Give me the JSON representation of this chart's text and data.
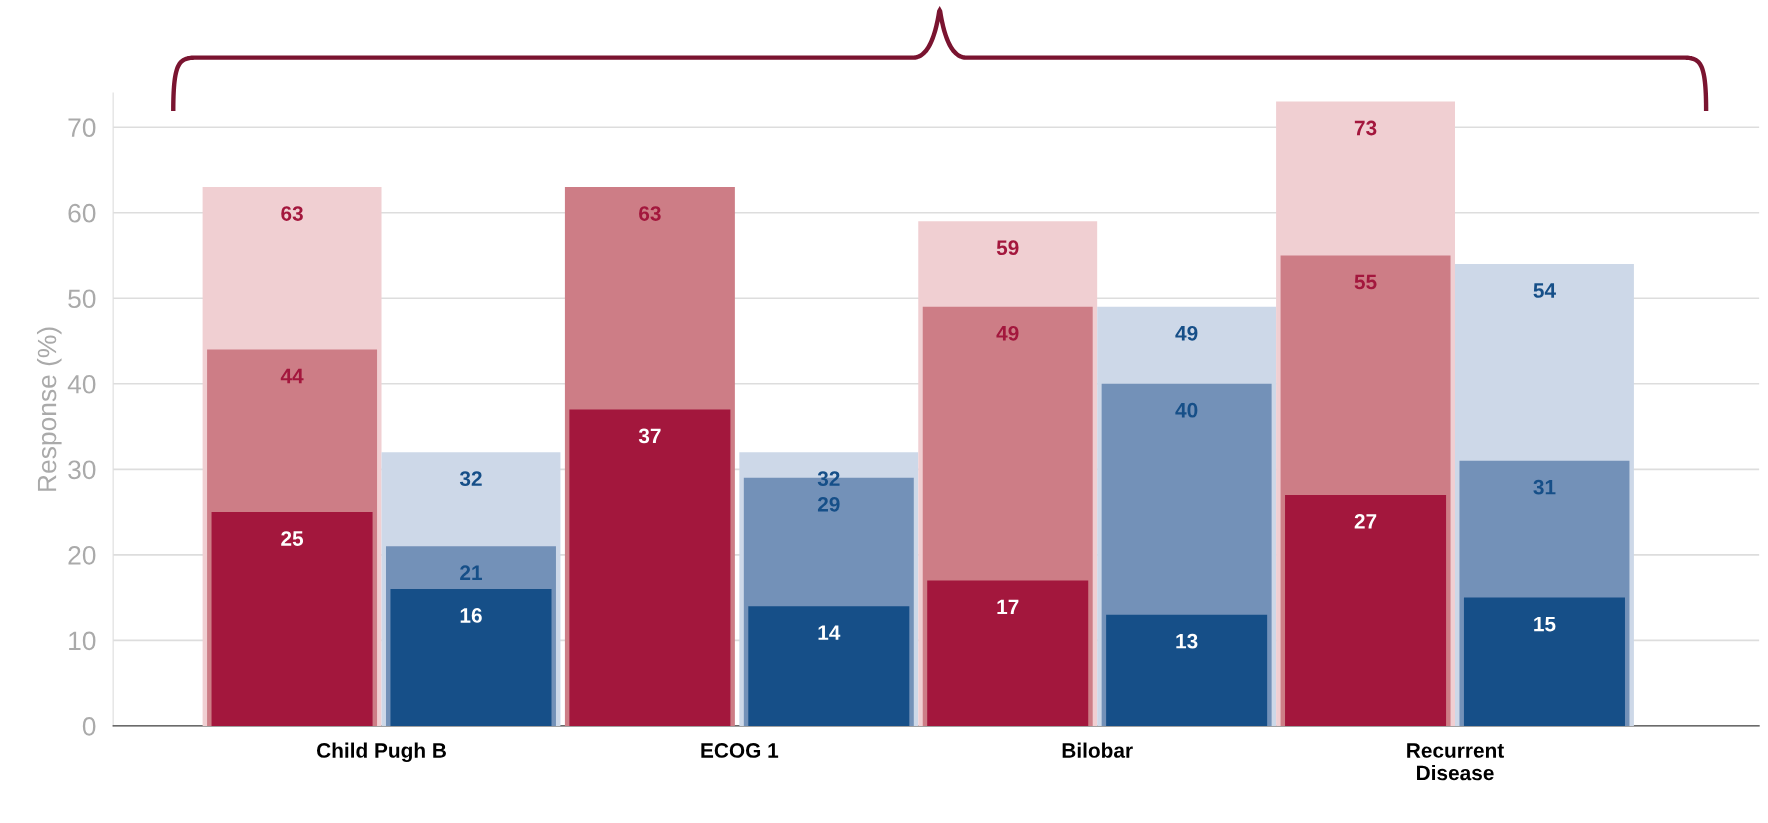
{
  "chart_data": {
    "type": "bar",
    "ylabel": "Response (%)",
    "categories": [
      "Child Pugh B",
      null,
      "ECOG 1",
      null,
      "Bilobar",
      null,
      "Recurrent\nDisease",
      null
    ],
    "ylim": [
      0,
      74
    ],
    "yticks": [
      0,
      10,
      20,
      30,
      40,
      50,
      60,
      70
    ],
    "grid": "y",
    "legend": false,
    "data_labels": true,
    "series": [
      {
        "colors": [
          "#a3173d",
          "#164f88",
          "#a3173d",
          "#164f88",
          "#a3173d",
          "#164f88",
          "#a3173d",
          "#164f88"
        ],
        "values": [
          25,
          16,
          37,
          14,
          17,
          13,
          27,
          15
        ]
      },
      {
        "colors": [
          "#cd7d86",
          "#7391b8",
          "#cd7d86",
          "#7391b8",
          "#cd7d86",
          "#7391b8",
          "#cd7d86",
          "#7391b8"
        ],
        "values": [
          44,
          21,
          63,
          29,
          49,
          40,
          55,
          31
        ]
      },
      {
        "colors": [
          "#f0cfd2",
          "#cdd8e8",
          "#f0cfd2",
          "#cdd8e8",
          "#f0cfd2",
          "#cdd8e8",
          "#f0cfd2",
          "#cdd8e8"
        ],
        "values": [
          63,
          32,
          null,
          32,
          59,
          49,
          73,
          54
        ]
      }
    ]
  }
}
